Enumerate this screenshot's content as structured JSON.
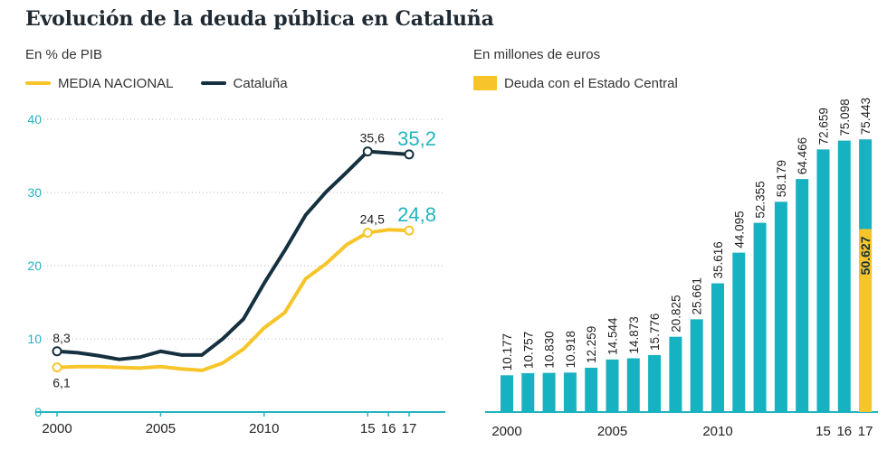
{
  "title": "Evolución de la deuda pública en Cataluña",
  "left": {
    "unit": "En % de PIB",
    "legend": [
      {
        "label": "MEDIA NACIONAL",
        "color": "#f7c52a"
      },
      {
        "label": "Cataluña",
        "color": "#15313f"
      }
    ]
  },
  "right": {
    "unit": "En millones de euros",
    "legend_label": "Deuda con el Estado Central",
    "legend_color": "#f7c52a"
  },
  "colors": {
    "teal": "#17b2c1",
    "navy": "#15313f",
    "yellow": "#f7c52a",
    "highlight": "#23b4c1"
  },
  "chart_data": [
    {
      "type": "line",
      "title": "En % de PIB",
      "ylim": [
        0,
        40
      ],
      "yticks": [
        "0",
        "10",
        "20",
        "30",
        "40"
      ],
      "xticks": [
        {
          "year": 2000,
          "label": "2000"
        },
        {
          "year": 2005,
          "label": "2005"
        },
        {
          "year": 2010,
          "label": "2010"
        },
        {
          "year": 2015,
          "label": "15"
        },
        {
          "year": 2016,
          "label": "16"
        },
        {
          "year": 2017,
          "label": "17"
        }
      ],
      "series": [
        {
          "name": "MEDIA NACIONAL",
          "color": "#f7c52a",
          "x": [
            2000,
            2001,
            2002,
            2003,
            2004,
            2005,
            2006,
            2007,
            2008,
            2009,
            2010,
            2011,
            2012,
            2013,
            2014,
            2015,
            2016,
            2017
          ],
          "values": [
            6.1,
            6.2,
            6.2,
            6.1,
            6.0,
            6.2,
            5.9,
            5.7,
            6.7,
            8.6,
            11.5,
            13.6,
            18.2,
            20.3,
            22.9,
            24.5,
            24.9,
            24.8
          ]
        },
        {
          "name": "Cataluña",
          "color": "#15313f",
          "x": [
            2000,
            2001,
            2002,
            2003,
            2004,
            2005,
            2006,
            2007,
            2008,
            2009,
            2010,
            2011,
            2012,
            2013,
            2014,
            2015,
            2016,
            2017
          ],
          "values": [
            8.3,
            8.1,
            7.7,
            7.2,
            7.5,
            8.3,
            7.8,
            7.8,
            10.0,
            12.7,
            17.6,
            22.1,
            26.9,
            30.1,
            32.8,
            35.6,
            35.4,
            35.2
          ]
        }
      ],
      "annotations": [
        {
          "text": "8,3",
          "x": 2000,
          "y": 8.3,
          "position": "above",
          "emphasis": false
        },
        {
          "text": "6,1",
          "x": 2000,
          "y": 6.1,
          "position": "below",
          "emphasis": false
        },
        {
          "text": "35,6",
          "x": 2015,
          "y": 35.6,
          "position": "above",
          "emphasis": false
        },
        {
          "text": "24,5",
          "x": 2015,
          "y": 24.5,
          "position": "above",
          "emphasis": false
        },
        {
          "text": "35,2",
          "x": 2017,
          "y": 35.2,
          "position": "above",
          "emphasis": true
        },
        {
          "text": "24,8",
          "x": 2017,
          "y": 24.8,
          "position": "above",
          "emphasis": true
        }
      ]
    },
    {
      "type": "bar",
      "title": "En millones de euros",
      "ylim": [
        0,
        80000
      ],
      "categories": [
        "2000",
        "2001",
        "2002",
        "2003",
        "2004",
        "2005",
        "2006",
        "2007",
        "2008",
        "2009",
        "2010",
        "2011",
        "2012",
        "2013",
        "2014",
        "2015",
        "2016",
        "2017"
      ],
      "values": [
        10177,
        10757,
        10830,
        10918,
        12259,
        14544,
        14873,
        15776,
        20825,
        25661,
        35616,
        44095,
        52355,
        58179,
        64466,
        72659,
        75098,
        75443
      ],
      "labels": [
        "10.177",
        "10.757",
        "10.830",
        "10.918",
        "12.259",
        "14.544",
        "14.873",
        "15.776",
        "20.825",
        "25.661",
        "35.616",
        "44.095",
        "52.355",
        "58.179",
        "64.466",
        "72.659",
        "75.098",
        "75.443"
      ],
      "xticks": [
        {
          "index": 0,
          "label": "2000"
        },
        {
          "index": 5,
          "label": "2005"
        },
        {
          "index": 10,
          "label": "2010"
        },
        {
          "index": 15,
          "label": "15"
        },
        {
          "index": 16,
          "label": "16"
        },
        {
          "index": 17,
          "label": "17"
        }
      ],
      "highlight": {
        "index": 17,
        "value": 50627,
        "label": "50.627",
        "name": "Deuda con el Estado Central"
      }
    }
  ]
}
